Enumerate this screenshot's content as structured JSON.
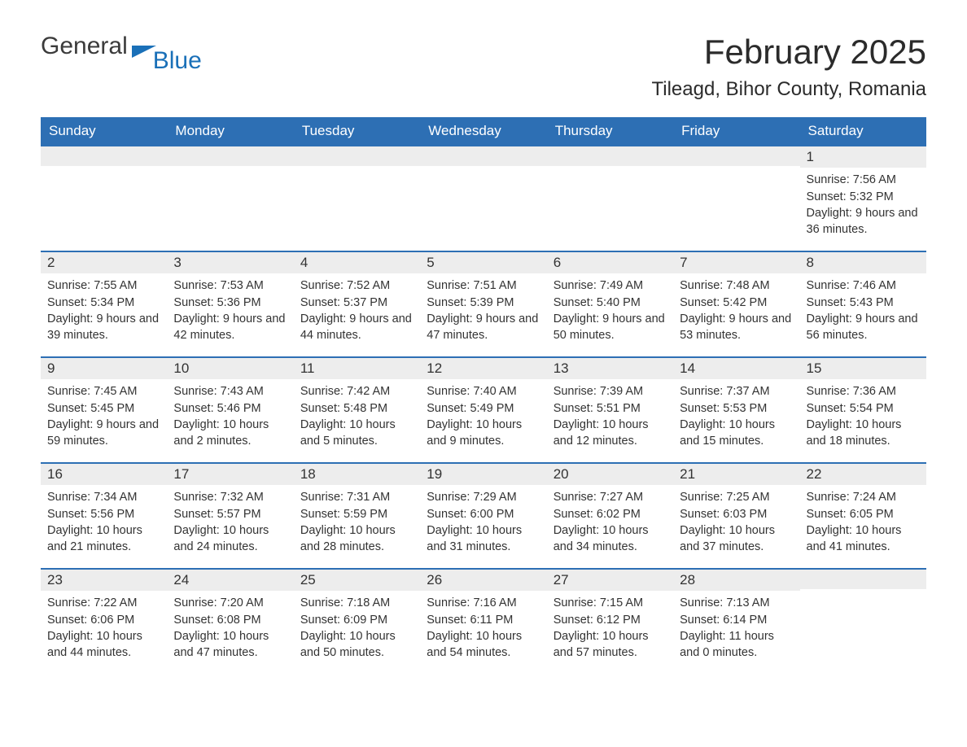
{
  "header": {
    "logo_general": "General",
    "logo_blue": "Blue",
    "month_title": "February 2025",
    "location": "Tileagd, Bihor County, Romania"
  },
  "colors": {
    "header_bg": "#2d6fb4",
    "header_text": "#ffffff",
    "day_number_bg": "#ededed",
    "row_border": "#2d6fb4",
    "text": "#333333",
    "logo_blue": "#1a70b8",
    "background": "#ffffff"
  },
  "weekdays": [
    "Sunday",
    "Monday",
    "Tuesday",
    "Wednesday",
    "Thursday",
    "Friday",
    "Saturday"
  ],
  "weeks": [
    [
      {
        "day": "",
        "sunrise": "",
        "sunset": "",
        "daylight": ""
      },
      {
        "day": "",
        "sunrise": "",
        "sunset": "",
        "daylight": ""
      },
      {
        "day": "",
        "sunrise": "",
        "sunset": "",
        "daylight": ""
      },
      {
        "day": "",
        "sunrise": "",
        "sunset": "",
        "daylight": ""
      },
      {
        "day": "",
        "sunrise": "",
        "sunset": "",
        "daylight": ""
      },
      {
        "day": "",
        "sunrise": "",
        "sunset": "",
        "daylight": ""
      },
      {
        "day": "1",
        "sunrise": "Sunrise: 7:56 AM",
        "sunset": "Sunset: 5:32 PM",
        "daylight": "Daylight: 9 hours and 36 minutes."
      }
    ],
    [
      {
        "day": "2",
        "sunrise": "Sunrise: 7:55 AM",
        "sunset": "Sunset: 5:34 PM",
        "daylight": "Daylight: 9 hours and 39 minutes."
      },
      {
        "day": "3",
        "sunrise": "Sunrise: 7:53 AM",
        "sunset": "Sunset: 5:36 PM",
        "daylight": "Daylight: 9 hours and 42 minutes."
      },
      {
        "day": "4",
        "sunrise": "Sunrise: 7:52 AM",
        "sunset": "Sunset: 5:37 PM",
        "daylight": "Daylight: 9 hours and 44 minutes."
      },
      {
        "day": "5",
        "sunrise": "Sunrise: 7:51 AM",
        "sunset": "Sunset: 5:39 PM",
        "daylight": "Daylight: 9 hours and 47 minutes."
      },
      {
        "day": "6",
        "sunrise": "Sunrise: 7:49 AM",
        "sunset": "Sunset: 5:40 PM",
        "daylight": "Daylight: 9 hours and 50 minutes."
      },
      {
        "day": "7",
        "sunrise": "Sunrise: 7:48 AM",
        "sunset": "Sunset: 5:42 PM",
        "daylight": "Daylight: 9 hours and 53 minutes."
      },
      {
        "day": "8",
        "sunrise": "Sunrise: 7:46 AM",
        "sunset": "Sunset: 5:43 PM",
        "daylight": "Daylight: 9 hours and 56 minutes."
      }
    ],
    [
      {
        "day": "9",
        "sunrise": "Sunrise: 7:45 AM",
        "sunset": "Sunset: 5:45 PM",
        "daylight": "Daylight: 9 hours and 59 minutes."
      },
      {
        "day": "10",
        "sunrise": "Sunrise: 7:43 AM",
        "sunset": "Sunset: 5:46 PM",
        "daylight": "Daylight: 10 hours and 2 minutes."
      },
      {
        "day": "11",
        "sunrise": "Sunrise: 7:42 AM",
        "sunset": "Sunset: 5:48 PM",
        "daylight": "Daylight: 10 hours and 5 minutes."
      },
      {
        "day": "12",
        "sunrise": "Sunrise: 7:40 AM",
        "sunset": "Sunset: 5:49 PM",
        "daylight": "Daylight: 10 hours and 9 minutes."
      },
      {
        "day": "13",
        "sunrise": "Sunrise: 7:39 AM",
        "sunset": "Sunset: 5:51 PM",
        "daylight": "Daylight: 10 hours and 12 minutes."
      },
      {
        "day": "14",
        "sunrise": "Sunrise: 7:37 AM",
        "sunset": "Sunset: 5:53 PM",
        "daylight": "Daylight: 10 hours and 15 minutes."
      },
      {
        "day": "15",
        "sunrise": "Sunrise: 7:36 AM",
        "sunset": "Sunset: 5:54 PM",
        "daylight": "Daylight: 10 hours and 18 minutes."
      }
    ],
    [
      {
        "day": "16",
        "sunrise": "Sunrise: 7:34 AM",
        "sunset": "Sunset: 5:56 PM",
        "daylight": "Daylight: 10 hours and 21 minutes."
      },
      {
        "day": "17",
        "sunrise": "Sunrise: 7:32 AM",
        "sunset": "Sunset: 5:57 PM",
        "daylight": "Daylight: 10 hours and 24 minutes."
      },
      {
        "day": "18",
        "sunrise": "Sunrise: 7:31 AM",
        "sunset": "Sunset: 5:59 PM",
        "daylight": "Daylight: 10 hours and 28 minutes."
      },
      {
        "day": "19",
        "sunrise": "Sunrise: 7:29 AM",
        "sunset": "Sunset: 6:00 PM",
        "daylight": "Daylight: 10 hours and 31 minutes."
      },
      {
        "day": "20",
        "sunrise": "Sunrise: 7:27 AM",
        "sunset": "Sunset: 6:02 PM",
        "daylight": "Daylight: 10 hours and 34 minutes."
      },
      {
        "day": "21",
        "sunrise": "Sunrise: 7:25 AM",
        "sunset": "Sunset: 6:03 PM",
        "daylight": "Daylight: 10 hours and 37 minutes."
      },
      {
        "day": "22",
        "sunrise": "Sunrise: 7:24 AM",
        "sunset": "Sunset: 6:05 PM",
        "daylight": "Daylight: 10 hours and 41 minutes."
      }
    ],
    [
      {
        "day": "23",
        "sunrise": "Sunrise: 7:22 AM",
        "sunset": "Sunset: 6:06 PM",
        "daylight": "Daylight: 10 hours and 44 minutes."
      },
      {
        "day": "24",
        "sunrise": "Sunrise: 7:20 AM",
        "sunset": "Sunset: 6:08 PM",
        "daylight": "Daylight: 10 hours and 47 minutes."
      },
      {
        "day": "25",
        "sunrise": "Sunrise: 7:18 AM",
        "sunset": "Sunset: 6:09 PM",
        "daylight": "Daylight: 10 hours and 50 minutes."
      },
      {
        "day": "26",
        "sunrise": "Sunrise: 7:16 AM",
        "sunset": "Sunset: 6:11 PM",
        "daylight": "Daylight: 10 hours and 54 minutes."
      },
      {
        "day": "27",
        "sunrise": "Sunrise: 7:15 AM",
        "sunset": "Sunset: 6:12 PM",
        "daylight": "Daylight: 10 hours and 57 minutes."
      },
      {
        "day": "28",
        "sunrise": "Sunrise: 7:13 AM",
        "sunset": "Sunset: 6:14 PM",
        "daylight": "Daylight: 11 hours and 0 minutes."
      },
      {
        "day": "",
        "sunrise": "",
        "sunset": "",
        "daylight": ""
      }
    ]
  ]
}
